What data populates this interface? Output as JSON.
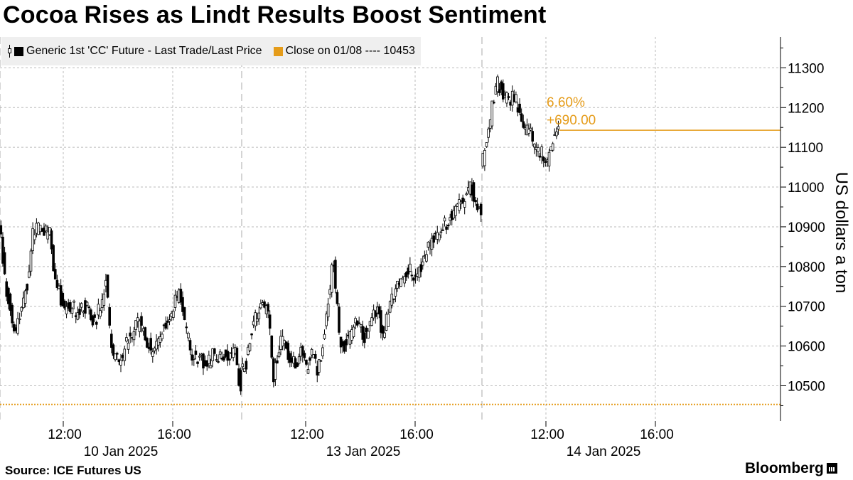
{
  "title": "Cocoa Rises as Lindt Results Boost Sentiment",
  "source": "Source: ICE Futures US",
  "brand": "Bloomberg",
  "legend": {
    "series1": "Generic 1st 'CC' Future - Last Trade/Last Price",
    "series2": "Close on 01/08 ---- 10453"
  },
  "annotation": {
    "pct": "6.60%",
    "change": "+690.00"
  },
  "colors": {
    "accent": "#e59c1a",
    "candle": "#000000",
    "grid": "#bbbbbb"
  },
  "chart_data": {
    "type": "line",
    "ylabel": "US dollars a ton",
    "ylim": [
      10420,
      11380
    ],
    "yticks": [
      10500,
      10600,
      10700,
      10800,
      10900,
      11000,
      11100,
      11200,
      11300
    ],
    "xticks": [
      {
        "time": "12:00",
        "date": "10 Jan 2025"
      },
      {
        "time": "16:00",
        "date": ""
      },
      {
        "time": "12:00",
        "date": "13 Jan 2025"
      },
      {
        "time": "16:00",
        "date": ""
      },
      {
        "time": "12:00",
        "date": "14 Jan 2025"
      },
      {
        "time": "16:00",
        "date": ""
      }
    ],
    "session_breaks": [
      "10 Jan 2025 close",
      "13 Jan 2025 close"
    ],
    "reference_line": {
      "label": "Close on 01/08",
      "value": 10453
    },
    "last_value": 11143,
    "change_abs": 690.0,
    "change_pct": 6.6,
    "series": [
      {
        "name": "Generic 1st 'CC' Future - Last Trade/Last Price",
        "sessions": [
          {
            "date": "10 Jan 2025",
            "hours": [
              9.45,
              19.3
            ],
            "values": [
              10920,
              10770,
              10690,
              10640,
              10700,
              10760,
              10880,
              10900,
              10890,
              10880,
              10760,
              10720,
              10690,
              10700,
              10680,
              10700,
              10690,
              10660,
              10700,
              10760,
              10590,
              10560,
              10580,
              10620,
              10640,
              10660,
              10620,
              10590,
              10610,
              10640,
              10670,
              10700,
              10730,
              10660,
              10590,
              10560,
              10570,
              10550,
              10580,
              10560,
              10580,
              10570,
              10580,
              10490
            ]
          },
          {
            "date": "13 Jan 2025",
            "hours": [
              9.45,
              19.3
            ],
            "values": [
              10530,
              10560,
              10640,
              10680,
              10700,
              10690,
              10530,
              10600,
              10620,
              10560,
              10560,
              10580,
              10550,
              10580,
              10540,
              10600,
              10720,
              10820,
              10620,
              10600,
              10630,
              10650,
              10640,
              10620,
              10660,
              10710,
              10620,
              10690,
              10730,
              10760,
              10780,
              10790,
              10770,
              10800,
              10840,
              10870,
              10880,
              10900,
              10920,
              10930,
              10950,
              10970,
              11010,
              10970,
              10940
            ]
          },
          {
            "date": "14 Jan 2025",
            "hours": [
              9.45,
              12.0
            ],
            "values": [
              11040,
              11120,
              11200,
              11260,
              11240,
              11210,
              11230,
              11190,
              11150,
              11130,
              11100,
              11090,
              11070,
              11120,
              11143
            ]
          }
        ]
      },
      {
        "name": "Close on 01/08",
        "values": [
          10453
        ]
      }
    ]
  }
}
